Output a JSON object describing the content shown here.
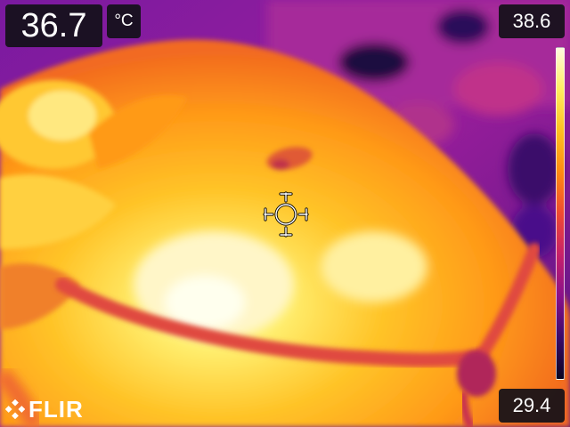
{
  "measurement": {
    "value": "36.7",
    "unit": "°C"
  },
  "scale": {
    "max": "38.6",
    "min": "29.4",
    "palette": [
      "#fffbe0",
      "#ffee60",
      "#ffc020",
      "#ff8a10",
      "#f04a30",
      "#c8206a",
      "#8a108a",
      "#3a0a6a",
      "#0a0520"
    ]
  },
  "crosshair": {
    "icon": "spot-meter-crosshair-icon"
  },
  "brand": {
    "name": "FLIR",
    "icon": "flir-logo-icon"
  }
}
